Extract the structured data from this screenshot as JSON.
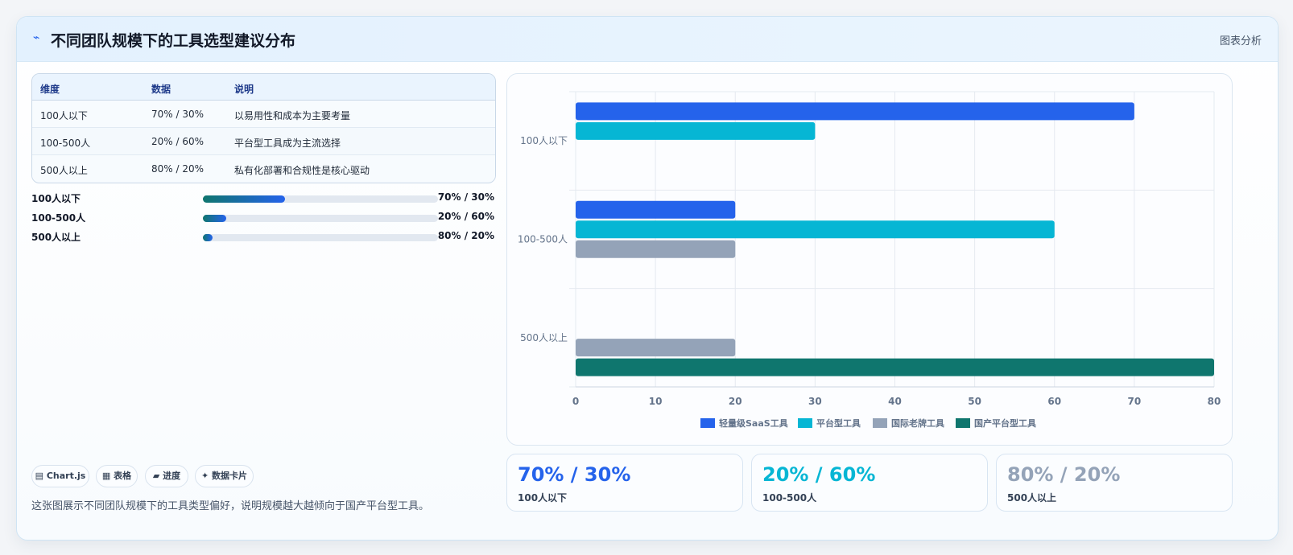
{
  "header": {
    "icon": "pulse-icon",
    "title": "不同团队规模下的工具选型建议分布",
    "tag": "图表分析"
  },
  "table": {
    "headers": [
      "维度",
      "数据",
      "说明"
    ],
    "rows": [
      [
        "100人以下",
        "70% / 30%",
        "以易用性和成本为主要考量"
      ],
      [
        "100-500人",
        "20% / 60%",
        "平台型工具成为主流选择"
      ],
      [
        "500人以上",
        "80% / 20%",
        "私有化部署和合规性是核心驱动"
      ]
    ]
  },
  "progress": [
    {
      "label": "100人以下",
      "value": "70% / 30%",
      "fill": 0.35
    },
    {
      "label": "100-500人",
      "value": "20% / 60%",
      "fill": 0.1
    },
    {
      "label": "500人以上",
      "value": "80% / 20%",
      "fill": 0.04
    }
  ],
  "chips": [
    "▤ Chart.js",
    "▦ 表格",
    "▰ 进度",
    "✦ 数据卡片"
  ],
  "note": "这张图展示不同团队规模下的工具类型偏好，说明规模越大越倾向于国产平台型工具。",
  "chart_data": {
    "type": "bar",
    "orientation": "horizontal",
    "categories": [
      "100人以下",
      "100-500人",
      "500人以上"
    ],
    "series": [
      {
        "name": "轻量级SaaS工具",
        "color": "#2563eb",
        "values": [
          70,
          20,
          null
        ]
      },
      {
        "name": "平台型工具",
        "color": "#06b6d4",
        "values": [
          30,
          60,
          null
        ]
      },
      {
        "name": "国际老牌工具",
        "color": "#94a3b8",
        "values": [
          null,
          20,
          20
        ]
      },
      {
        "name": "国产平台型工具",
        "color": "#0f766e",
        "values": [
          null,
          null,
          80
        ]
      }
    ],
    "xlim": [
      0,
      80
    ],
    "xticks": [
      0,
      10,
      20,
      30,
      40,
      50,
      60,
      70,
      80
    ],
    "grid": true,
    "legend": "bottom"
  },
  "stats": [
    {
      "value": "70% / 30%",
      "label": "100人以下",
      "color": "#2563eb"
    },
    {
      "value": "20% / 60%",
      "label": "100-500人",
      "color": "#06b6d4"
    },
    {
      "value": "80% / 20%",
      "label": "500人以上",
      "color": "#94a3b8"
    }
  ]
}
